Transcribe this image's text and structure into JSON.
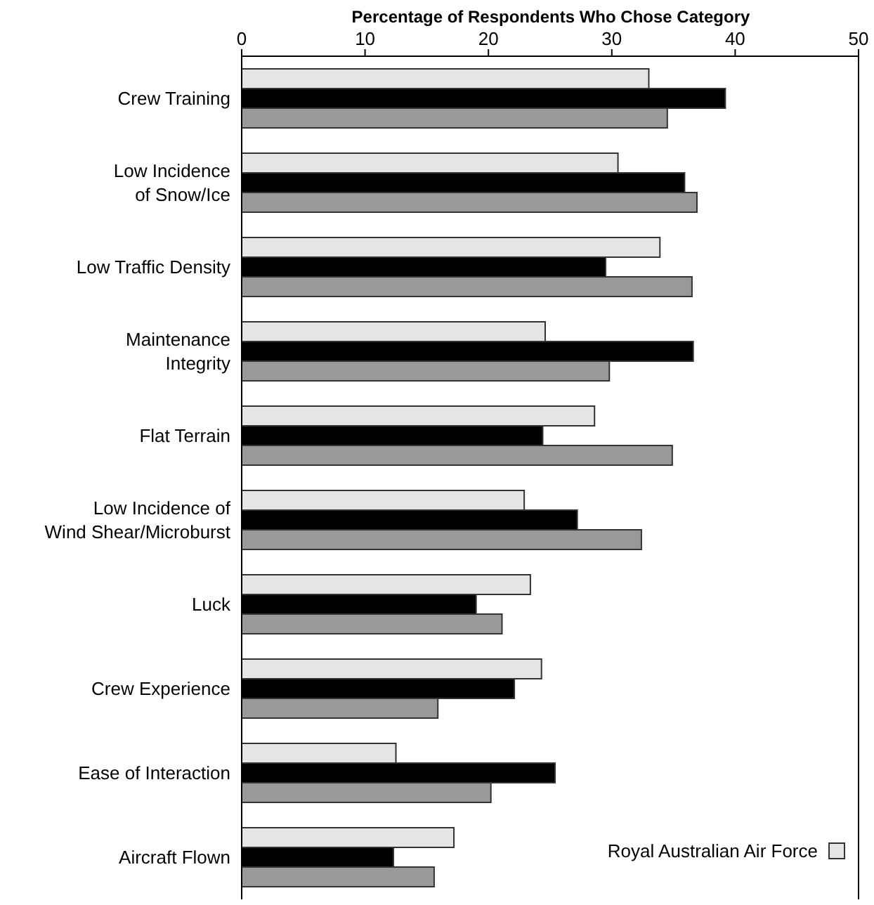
{
  "chart_data": {
    "type": "bar",
    "orientation": "horizontal",
    "xlabel": "Percentage of Respondents Who Chose Category",
    "categories": [
      "Crew Training",
      "Low Incidence\nof Snow/Ice",
      "Low Traffic Density",
      "Maintenance\nIntegrity",
      "Flat Terrain",
      "Low Incidence of\nWind Shear/Microburst",
      "Luck",
      "Crew Experience",
      "Ease of Interaction",
      "Aircraft Flown"
    ],
    "series": [
      {
        "name": "Royal Australian Air Force",
        "color": "#e5e5e5",
        "values": [
          33.0,
          30.5,
          33.9,
          24.6,
          28.6,
          22.9,
          23.4,
          24.3,
          12.5,
          17.2
        ]
      },
      {
        "color": "#000000",
        "values": [
          39.2,
          35.9,
          29.5,
          36.6,
          24.4,
          27.2,
          19.0,
          22.1,
          25.4,
          12.3
        ]
      },
      {
        "color": "#999999",
        "values": [
          34.5,
          36.9,
          36.5,
          29.8,
          34.9,
          32.4,
          21.1,
          15.9,
          20.2,
          15.6
        ]
      }
    ],
    "xlim": [
      0,
      50
    ],
    "xticks": [
      0,
      10,
      20,
      30,
      40,
      50
    ],
    "grid": false,
    "legend": "bottom right"
  }
}
